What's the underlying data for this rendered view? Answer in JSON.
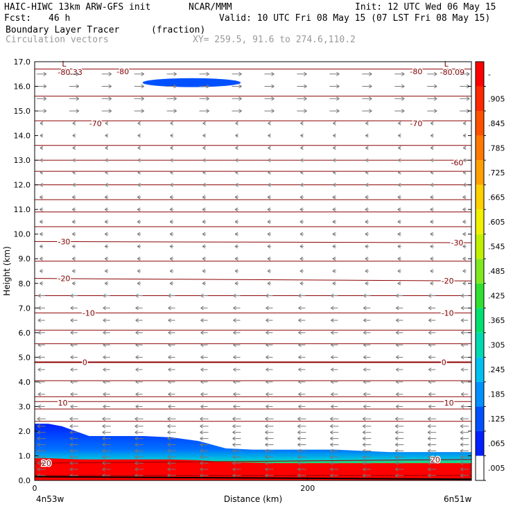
{
  "header": {
    "model": "HAIC-HIWC 13km ARW-GFS init",
    "center": "NCAR/MMM",
    "init": "Init: 12 UTC Wed 06 May 15",
    "fcst_label": "Fcst:",
    "fcst_value": "46 h",
    "valid": "Valid: 10 UTC Fri 08 May 15 (07 LST Fri 08 May 15)",
    "field": "Boundary Layer Tracer",
    "units": "(fraction)",
    "overlay": "Circulation vectors",
    "xy": "XY= 259.5, 91.6 to 274.6,110.2"
  },
  "chart_data": {
    "type": "heatmap",
    "ylabel": "Height (km)",
    "xlabel": "Distance (km)",
    "xlim": [
      0,
      320
    ],
    "ylim": [
      0,
      17
    ],
    "y_ticks": [
      "0.0",
      "1.0",
      "2.0",
      "3.0",
      "4.0",
      "5.0",
      "6.0",
      "7.0",
      "8.0",
      "9.0",
      "10.0",
      "11.0",
      "12.0",
      "13.0",
      "14.0",
      "15.0",
      "16.0",
      "17.0"
    ],
    "x_ticks": [
      {
        "value": 0,
        "label": "0"
      },
      {
        "value": 200,
        "label": "200"
      }
    ],
    "x_end_labels": {
      "left": "4n53w",
      "right": "6n51w"
    },
    "colorbar": {
      "labels": [
        ".005",
        ".065",
        ".125",
        ".185",
        ".245",
        ".305",
        ".365",
        ".425",
        ".485",
        ".545",
        ".605",
        ".665",
        ".725",
        ".785",
        ".845",
        ".905",
        "-"
      ],
      "colors": [
        "#ffffff",
        "#0020ff",
        "#0050ff",
        "#0090ff",
        "#00c0f0",
        "#00d8b0",
        "#00e070",
        "#30e030",
        "#80e820",
        "#c0f000",
        "#f0f000",
        "#ffd000",
        "#ffa000",
        "#ff7800",
        "#ff5000",
        "#ff2800",
        "#ff0000"
      ]
    },
    "tracer_profile": {
      "description_free": true,
      "x": [
        0,
        10,
        20,
        30,
        40,
        60,
        80,
        100,
        120,
        140,
        160,
        180,
        200,
        220,
        240,
        260,
        280,
        300,
        320
      ],
      "top_km": [
        2.3,
        2.3,
        2.2,
        2.0,
        1.8,
        1.8,
        1.8,
        1.75,
        1.6,
        1.3,
        1.25,
        1.25,
        1.25,
        1.25,
        1.2,
        1.15,
        1.15,
        1.15,
        1.15
      ],
      "red_top_km": [
        0.9,
        0.9,
        0.88,
        0.86,
        0.85,
        0.85,
        0.85,
        0.85,
        0.82,
        0.75,
        0.72,
        0.7,
        0.7,
        0.7,
        0.7,
        0.7,
        0.7,
        0.7,
        0.7
      ]
    },
    "upper_patch": {
      "x_center": 115,
      "y_km": 16.15,
      "half_width_km": 36,
      "half_height_km": 0.18
    },
    "isotherms": [
      {
        "label": "20",
        "y_left": 0.7,
        "y_right": 0.85,
        "label_positions": [
          [
            5,
            0.7
          ],
          [
            290,
            0.85
          ]
        ]
      },
      {
        "label": "10",
        "y_left": 3.2,
        "y_right": 3.2,
        "label_positions": [
          [
            17,
            3.15
          ],
          [
            300,
            3.15
          ]
        ]
      },
      {
        "label": "0",
        "y_left": 4.8,
        "y_right": 4.8,
        "label_positions": [
          [
            35,
            4.8
          ],
          [
            298,
            4.8
          ]
        ]
      },
      {
        "label": "-10",
        "y_left": 6.8,
        "y_right": 6.8,
        "label_positions": [
          [
            35,
            6.8
          ],
          [
            298,
            6.8
          ]
        ]
      },
      {
        "label": "-20",
        "y_left": 8.2,
        "y_right": 8.1,
        "label_positions": [
          [
            17,
            8.2
          ],
          [
            298,
            8.1
          ]
        ]
      },
      {
        "label": "-30",
        "y_left": 9.7,
        "y_right": 9.65,
        "label_positions": [
          [
            17,
            9.7
          ],
          [
            305,
            9.65
          ]
        ]
      },
      {
        "label": "-60",
        "y_left": 13.0,
        "y_right": 13.0,
        "label_positions": [
          [
            305,
            12.9
          ]
        ]
      },
      {
        "label": "-70",
        "y_left": 14.6,
        "y_right": 14.6,
        "label_positions": [
          [
            40,
            14.5
          ],
          [
            275,
            14.5
          ]
        ]
      },
      {
        "label": "-80",
        "y_left": 16.7,
        "y_right": 16.7,
        "label_positions": [
          [
            60,
            16.6
          ],
          [
            275,
            16.6
          ]
        ]
      }
    ],
    "extra_contours_km": [
      0.2,
      2.4,
      2.9,
      3.4,
      4.05,
      5.55,
      6.1,
      7.5,
      8.9,
      10.3,
      10.9,
      11.4,
      12.0,
      12.55,
      13.6,
      15.6
    ],
    "minima": [
      {
        "label": "L",
        "value": "-80.33",
        "x": 20,
        "y": 16.75
      },
      {
        "label": "L",
        "value": "-80.09",
        "x": 300,
        "y": 16.75
      }
    ],
    "vector_rows_km": [
      0.2,
      0.45,
      0.7,
      0.95,
      1.2,
      1.45,
      1.7,
      1.95,
      2.2,
      2.5,
      3.0,
      3.5,
      4.0,
      4.5,
      5.0,
      5.5,
      6.0,
      6.5,
      7.0,
      7.5,
      8.0,
      8.5,
      9.0,
      9.5,
      10.0,
      10.5,
      11.0,
      11.5,
      12.0,
      12.5,
      13.0,
      13.5,
      14.0,
      14.5,
      15.0,
      15.5,
      16.0,
      16.5
    ],
    "grid": false
  }
}
